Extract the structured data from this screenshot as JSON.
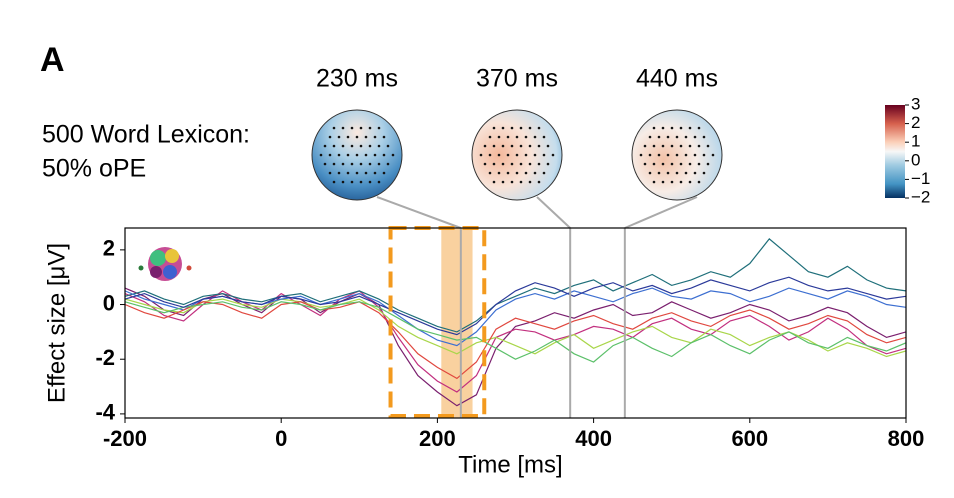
{
  "panel_label": "A",
  "chart_data": {
    "type": "line",
    "subtitle": [
      "500 Word Lexicon:",
      "50% oPE"
    ],
    "xlabel": "Time [ms]",
    "ylabel": "Effect size [μV]",
    "x": [
      -200,
      -175,
      -150,
      -125,
      -100,
      -75,
      -50,
      -25,
      0,
      25,
      50,
      75,
      100,
      125,
      150,
      175,
      200,
      225,
      250,
      275,
      300,
      325,
      350,
      375,
      400,
      425,
      450,
      475,
      500,
      525,
      550,
      575,
      600,
      625,
      650,
      675,
      700,
      725,
      750,
      775,
      800
    ],
    "series": [
      {
        "color": "#7a1f6e",
        "values": [
          0.6,
          0.3,
          -0.2,
          -0.4,
          0.2,
          0.4,
          0.0,
          -0.3,
          0.3,
          0.2,
          -0.3,
          0.1,
          0.4,
          0.0,
          -1.5,
          -2.6,
          -3.2,
          -3.7,
          -3.3,
          -1.6,
          -0.8,
          -0.6,
          -0.3,
          -0.5,
          -0.2,
          0.0,
          -0.4,
          -0.3,
          0.1,
          -0.2,
          -0.5,
          -0.3,
          0.0,
          -0.2,
          -0.6,
          -0.4,
          -0.1,
          -0.3,
          -0.8,
          -1.2,
          -1.0
        ]
      },
      {
        "color": "#c2307f",
        "values": [
          0.4,
          0.1,
          -0.4,
          -0.6,
          0.0,
          0.5,
          0.1,
          -0.2,
          0.4,
          0.0,
          -0.4,
          0.2,
          0.5,
          -0.1,
          -1.2,
          -2.2,
          -2.8,
          -3.2,
          -2.6,
          -1.2,
          -0.9,
          -1.0,
          -1.3,
          -1.1,
          -0.8,
          -0.9,
          -1.2,
          -0.7,
          -0.5,
          -0.9,
          -1.1,
          -0.6,
          -0.4,
          -0.8,
          -1.3,
          -1.0,
          -0.5,
          -0.9,
          -1.5,
          -1.8,
          -1.6
        ]
      },
      {
        "color": "#a9d64a",
        "values": [
          0.2,
          0.0,
          -0.2,
          -0.3,
          0.1,
          0.2,
          0.0,
          -0.1,
          0.2,
          0.1,
          -0.1,
          0.0,
          0.2,
          -0.2,
          -0.8,
          -1.2,
          -1.5,
          -1.8,
          -1.4,
          -1.2,
          -1.5,
          -1.8,
          -1.4,
          -1.1,
          -1.6,
          -1.3,
          -1.0,
          -0.8,
          -1.2,
          -1.4,
          -0.9,
          -1.1,
          -1.5,
          -1.2,
          -1.0,
          -1.3,
          -1.7,
          -1.4,
          -1.6,
          -1.9,
          -1.7
        ]
      },
      {
        "color": "#1f6f7a",
        "values": [
          0.3,
          0.5,
          0.2,
          0.0,
          0.3,
          0.4,
          0.2,
          0.1,
          0.3,
          0.4,
          0.1,
          0.3,
          0.5,
          0.2,
          -0.2,
          -0.5,
          -0.8,
          -1.0,
          -0.6,
          0.0,
          0.3,
          0.6,
          0.4,
          0.7,
          0.9,
          0.5,
          0.8,
          1.1,
          0.7,
          0.9,
          1.2,
          1.0,
          1.5,
          2.4,
          1.8,
          1.2,
          1.0,
          1.4,
          0.9,
          0.6,
          0.5
        ]
      },
      {
        "color": "#3d6fd1",
        "values": [
          0.5,
          0.2,
          0.0,
          -0.2,
          0.2,
          0.3,
          0.1,
          0.0,
          0.2,
          0.3,
          0.0,
          0.2,
          0.4,
          0.1,
          -0.4,
          -0.9,
          -1.3,
          -1.5,
          -1.0,
          -0.2,
          0.2,
          0.4,
          0.2,
          0.5,
          0.3,
          0.1,
          0.4,
          0.6,
          0.3,
          0.2,
          0.5,
          0.4,
          0.1,
          0.3,
          0.6,
          0.4,
          0.2,
          0.5,
          0.3,
          0.0,
          -0.1
        ]
      },
      {
        "color": "#e0483f",
        "values": [
          0.0,
          -0.3,
          -0.5,
          -0.2,
          0.1,
          0.0,
          -0.3,
          -0.5,
          0.0,
          0.1,
          -0.2,
          -0.1,
          0.1,
          -0.3,
          -1.0,
          -1.8,
          -2.3,
          -2.7,
          -2.1,
          -0.9,
          -0.5,
          -0.7,
          -0.9,
          -0.6,
          -0.4,
          -0.7,
          -0.9,
          -0.5,
          -0.3,
          -0.6,
          -0.8,
          -0.4,
          -0.2,
          -0.5,
          -0.9,
          -0.7,
          -0.4,
          -0.6,
          -1.1,
          -1.4,
          -1.2
        ]
      },
      {
        "color": "#5cc06a",
        "values": [
          0.1,
          -0.1,
          -0.3,
          -0.1,
          0.0,
          0.1,
          -0.1,
          -0.2,
          0.1,
          0.0,
          -0.2,
          0.0,
          0.1,
          -0.1,
          -0.5,
          -0.9,
          -1.1,
          -1.3,
          -1.2,
          -1.6,
          -2.0,
          -1.7,
          -1.3,
          -1.8,
          -2.1,
          -1.5,
          -1.2,
          -1.6,
          -1.9,
          -1.4,
          -1.1,
          -1.5,
          -1.8,
          -1.3,
          -1.0,
          -1.4,
          -1.6,
          -1.2,
          -1.5,
          -1.7,
          -1.4
        ]
      },
      {
        "color": "#2b3a9a",
        "values": [
          0.2,
          0.4,
          0.1,
          -0.1,
          0.2,
          0.3,
          0.1,
          0.0,
          0.3,
          0.2,
          0.0,
          0.1,
          0.3,
          0.0,
          -0.3,
          -0.6,
          -0.9,
          -1.1,
          -0.7,
          0.0,
          0.5,
          0.8,
          0.6,
          0.3,
          0.6,
          0.8,
          0.5,
          0.7,
          0.4,
          0.6,
          0.9,
          0.7,
          0.5,
          0.8,
          1.0,
          0.7,
          0.5,
          0.6,
          0.4,
          0.2,
          0.3
        ]
      }
    ],
    "xlim": [
      -200,
      800
    ],
    "xticks": [
      -200,
      0,
      200,
      400,
      600,
      800
    ],
    "ylim": [
      -4.15,
      2.8
    ],
    "yticks": [
      -4,
      -2,
      0,
      2
    ],
    "highlight_band": [
      205,
      245
    ],
    "dashed_box": [
      140,
      260
    ],
    "topomaps": [
      {
        "label": "230 ms",
        "time": 230
      },
      {
        "label": "370 ms",
        "time": 370
      },
      {
        "label": "440 ms",
        "time": 440
      }
    ],
    "colorbar": {
      "clim": [
        -2,
        3
      ],
      "ticks": [
        3,
        2,
        1,
        0,
        {
          "value": -1,
          "label": "−1"
        },
        {
          "value": -2,
          "label": "−2"
        }
      ]
    }
  }
}
